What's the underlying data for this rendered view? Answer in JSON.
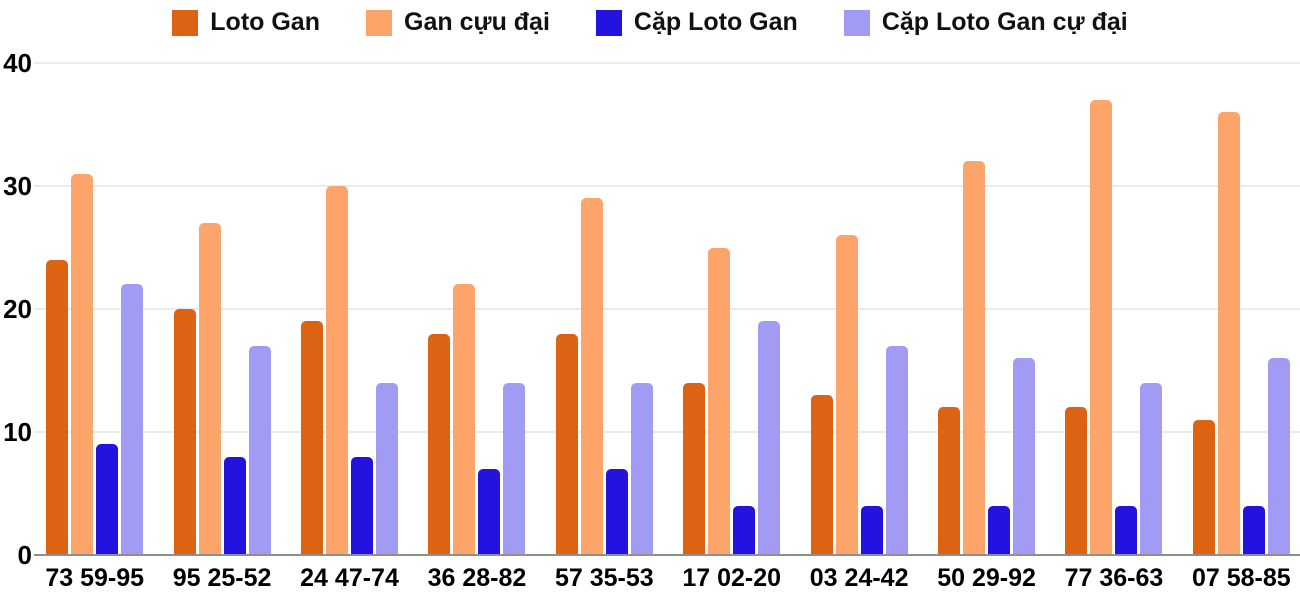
{
  "chart_data": {
    "type": "bar",
    "title": "",
    "xlabel": "",
    "ylabel": "",
    "categories": [
      "73 59-95",
      "95 25-52",
      "24 47-74",
      "36 28-82",
      "57 35-53",
      "17 02-20",
      "03 24-42",
      "50 29-92",
      "77 36-63",
      "07 58-85"
    ],
    "series": [
      {
        "name": "Loto Gan",
        "color": "#dc6214",
        "values": [
          24,
          20,
          19,
          18,
          18,
          14,
          13,
          12,
          12,
          11
        ]
      },
      {
        "name": "Gan cựu đại",
        "color": "#fda46a",
        "values": [
          31,
          27,
          30,
          22,
          29,
          25,
          26,
          32,
          37,
          36
        ]
      },
      {
        "name": "Cặp Loto Gan",
        "color": "#2213df",
        "values": [
          9,
          8,
          8,
          7,
          7,
          4,
          4,
          4,
          4,
          4
        ]
      },
      {
        "name": "Cặp Loto Gan cự đại",
        "color": "#a29bf3",
        "values": [
          22,
          17,
          14,
          14,
          14,
          19,
          17,
          16,
          14,
          16
        ]
      }
    ],
    "ylim": [
      0,
      40
    ],
    "yticks": [
      0,
      10,
      20,
      30,
      40
    ],
    "grid": true,
    "legend_position": "top"
  },
  "colors": {
    "background": "#ffffff",
    "gridline": "#ebebeb",
    "axis_line": "#8f8f8f",
    "label_text": "#000000"
  }
}
